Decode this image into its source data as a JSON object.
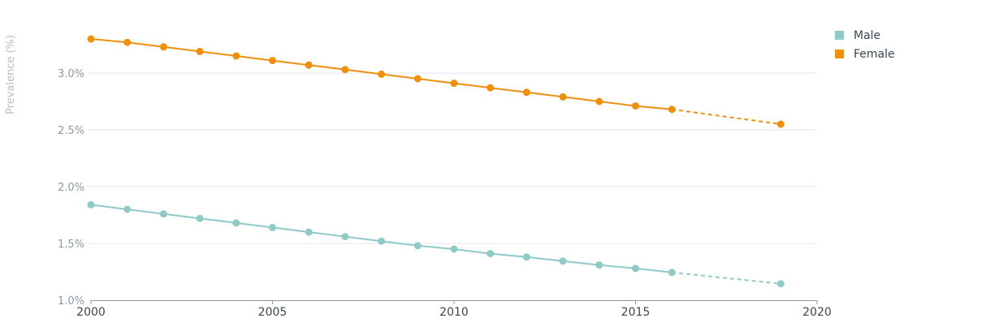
{
  "chart_data": {
    "type": "line",
    "ylabel": "Prevalence (%)",
    "xlabel": "",
    "xlim": [
      2000,
      2020
    ],
    "ylim": [
      1.0,
      3.5
    ],
    "x_ticks": [
      {
        "value": 2000,
        "label": "2000"
      },
      {
        "value": 2005,
        "label": "2005"
      },
      {
        "value": 2010,
        "label": "2010"
      },
      {
        "value": 2015,
        "label": "2015"
      },
      {
        "value": 2020,
        "label": "2020"
      }
    ],
    "y_ticks": [
      {
        "value": 1.0,
        "label": "1.0%"
      },
      {
        "value": 1.5,
        "label": "1.5%"
      },
      {
        "value": 2.0,
        "label": "2.0%"
      },
      {
        "value": 2.5,
        "label": "2.5%"
      },
      {
        "value": 3.0,
        "label": "3.0%"
      }
    ],
    "grid": true,
    "legend_position": "top-right",
    "series": [
      {
        "name": "Male",
        "color": "#8fcac6",
        "x": [
          2000,
          2001,
          2002,
          2003,
          2004,
          2005,
          2006,
          2007,
          2008,
          2009,
          2010,
          2011,
          2012,
          2013,
          2014,
          2015,
          2016,
          2019
        ],
        "values": [
          1.84,
          1.8,
          1.76,
          1.72,
          1.68,
          1.64,
          1.6,
          1.56,
          1.52,
          1.48,
          1.45,
          1.41,
          1.38,
          1.345,
          1.31,
          1.28,
          1.245,
          1.145
        ],
        "projected_from": 2016
      },
      {
        "name": "Female",
        "color": "#ee8f0e",
        "x": [
          2000,
          2001,
          2002,
          2003,
          2004,
          2005,
          2006,
          2007,
          2008,
          2009,
          2010,
          2011,
          2012,
          2013,
          2014,
          2015,
          2016,
          2019
        ],
        "values": [
          3.3,
          3.27,
          3.23,
          3.19,
          3.15,
          3.11,
          3.07,
          3.03,
          2.99,
          2.95,
          2.91,
          2.87,
          2.83,
          2.79,
          2.75,
          2.71,
          2.68,
          2.55
        ],
        "projected_from": 2016
      }
    ]
  }
}
